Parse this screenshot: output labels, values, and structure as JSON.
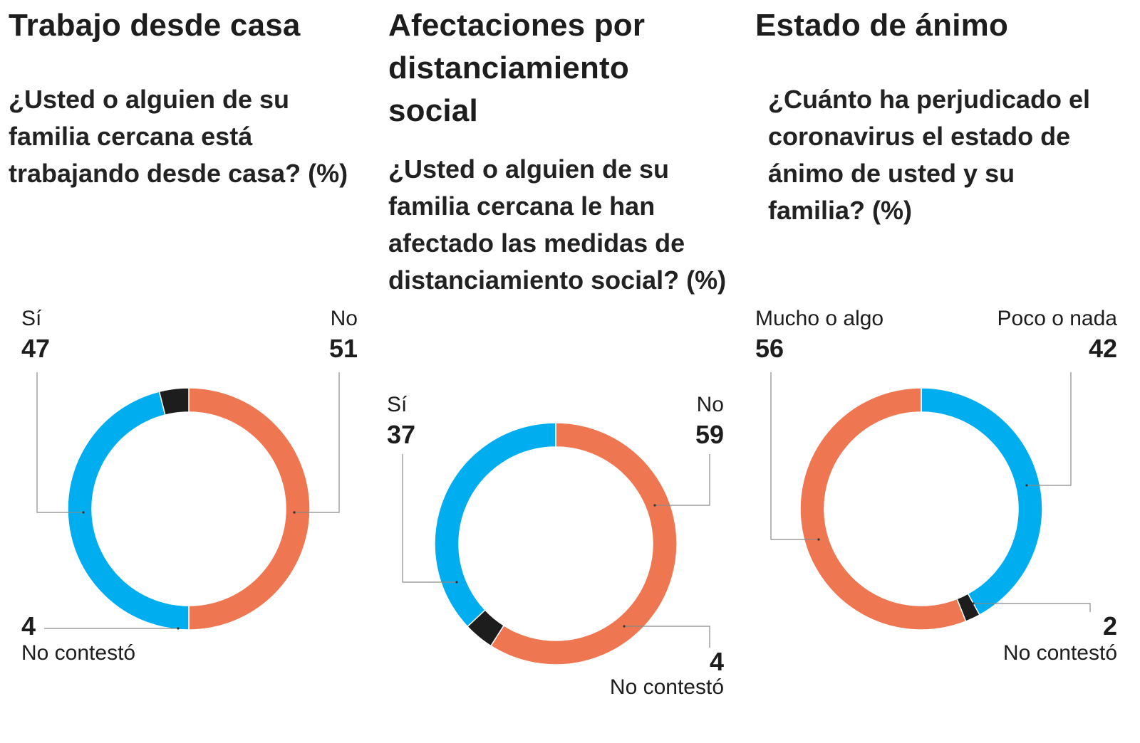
{
  "colors": {
    "blue": "#00aeef",
    "orange": "#ee7650",
    "black": "#1d1d1d",
    "leader": "#8a8a8a"
  },
  "chart_data": [
    {
      "type": "pie",
      "title": "Trabajo desde casa",
      "subtitle": "¿Usted o alguien de su familia cercana está trabajando desde casa? (%)",
      "labels": [
        "No",
        "Sí",
        "No contestó"
      ],
      "values": [
        51,
        47,
        4
      ],
      "series": [
        {
          "name": "No",
          "label": "No",
          "value": 51,
          "value_text": "51",
          "color": "#ee7650"
        },
        {
          "name": "Sí",
          "label": "Sí",
          "value": 47,
          "value_text": "47",
          "color": "#00aeef"
        },
        {
          "name": "No contestó",
          "label": "No contestó",
          "value": 4,
          "value_text": "4",
          "color": "#1d1d1d"
        }
      ]
    },
    {
      "type": "pie",
      "title": "Afectaciones por distanciamiento social",
      "subtitle": "¿Usted o alguien de su familia cercana le han afectado las medidas de distanciamiento social? (%)",
      "labels": [
        "No",
        "No contestó",
        "Sí"
      ],
      "values": [
        59,
        4,
        37
      ],
      "series": [
        {
          "name": "No",
          "label": "No",
          "value": 59,
          "value_text": "59",
          "color": "#ee7650"
        },
        {
          "name": "No contestó",
          "label": "No contestó",
          "value": 4,
          "value_text": "4",
          "color": "#1d1d1d"
        },
        {
          "name": "Sí",
          "label": "Sí",
          "value": 37,
          "value_text": "37",
          "color": "#00aeef"
        }
      ]
    },
    {
      "type": "pie",
      "title": "Estado de ánimo",
      "subtitle": "¿Cuánto ha perjudicado el coronavirus el estado de ánimo de usted y su familia? (%)",
      "labels": [
        "Poco o nada",
        "No contestó",
        "Mucho o algo"
      ],
      "values": [
        42,
        2,
        56
      ],
      "series": [
        {
          "name": "Poco o nada",
          "label": "Poco o nada",
          "value": 42,
          "value_text": "42",
          "color": "#00aeef"
        },
        {
          "name": "No contestó",
          "label": "No contestó",
          "value": 2,
          "value_text": "2",
          "color": "#1d1d1d"
        },
        {
          "name": "Mucho o algo",
          "label": "Mucho o algo",
          "value": 56,
          "value_text": "56",
          "color": "#ee7650"
        }
      ]
    }
  ]
}
